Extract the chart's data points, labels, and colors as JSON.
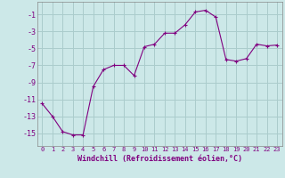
{
  "x": [
    0,
    1,
    2,
    3,
    4,
    5,
    6,
    7,
    8,
    9,
    10,
    11,
    12,
    13,
    14,
    15,
    16,
    17,
    18,
    19,
    20,
    21,
    22,
    23
  ],
  "y": [
    -11.5,
    -13.0,
    -14.8,
    -15.2,
    -15.2,
    -9.5,
    -7.5,
    -7.0,
    -7.0,
    -8.2,
    -4.8,
    -4.5,
    -3.2,
    -3.2,
    -2.2,
    -0.7,
    -0.5,
    -1.3,
    -6.3,
    -6.5,
    -6.2,
    -4.5,
    -4.7,
    -4.6
  ],
  "line_color": "#800080",
  "marker": "+",
  "marker_size": 3,
  "bg_color": "#cce8e8",
  "grid_color": "#aacccc",
  "tick_color": "#800080",
  "xlabel": "Windchill (Refroidissement éolien,°C)",
  "xlabel_fontsize": 6,
  "ytick_fontsize": 6,
  "xtick_fontsize": 5,
  "yticks": [
    -15,
    -13,
    -11,
    -9,
    -7,
    -5,
    -3,
    -1
  ],
  "xticks": [
    0,
    1,
    2,
    3,
    4,
    5,
    6,
    7,
    8,
    9,
    10,
    11,
    12,
    13,
    14,
    15,
    16,
    17,
    18,
    19,
    20,
    21,
    22,
    23
  ],
  "ylim": [
    -16.5,
    0.5
  ],
  "xlim": [
    -0.5,
    23.5
  ]
}
